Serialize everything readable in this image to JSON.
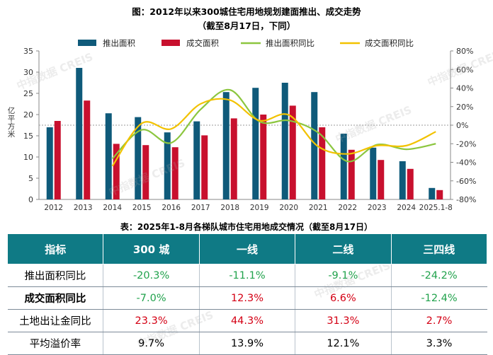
{
  "page": {
    "chart_title": "图：2012年以来300城住宅用地规划建面推出、成交走势",
    "chart_subtitle": "（截至8月17日，下同）",
    "table_title": "表：2025年1-8月各梯队城市住宅用地成交情况（截至8月17日）",
    "watermark": "中指数据 CREIS"
  },
  "chart_data": {
    "type": "bar",
    "categories": [
      "2012",
      "2013",
      "2014",
      "2015",
      "2016",
      "2017",
      "2018",
      "2019",
      "2020",
      "2021",
      "2022",
      "2023",
      "2024",
      "2025.1-8"
    ],
    "ylabel": "亿平方米",
    "ylim": [
      0,
      35
    ],
    "yticks": [
      0,
      5,
      10,
      15,
      20,
      25,
      30,
      35
    ],
    "y2lim": [
      -80,
      80
    ],
    "y2ticks": [
      "-80%",
      "-60%",
      "-40%",
      "-20%",
      "0%",
      "20%",
      "40%",
      "60%",
      "80%"
    ],
    "grid": false,
    "legend_position": "top",
    "series": [
      {
        "name": "推出面积",
        "kind": "bar",
        "axis": "left",
        "color": "#0f5a7a",
        "values": [
          17.0,
          31.0,
          20.3,
          19.4,
          15.8,
          18.4,
          25.3,
          26.3,
          27.5,
          25.3,
          15.5,
          12.2,
          9.0,
          2.7
        ]
      },
      {
        "name": "成交面积",
        "kind": "bar",
        "axis": "left",
        "color": "#c8102e",
        "values": [
          18.5,
          23.3,
          13.1,
          12.8,
          12.3,
          15.1,
          19.1,
          20.0,
          22.1,
          17.0,
          11.7,
          9.3,
          7.2,
          2.2
        ]
      },
      {
        "name": "推出面积同比",
        "kind": "line",
        "axis": "right",
        "color": "#8cc63f",
        "values": [
          null,
          null,
          -36,
          -5,
          -19,
          17,
          38,
          4,
          5,
          -8,
          -39,
          -21,
          -26,
          -20
        ]
      },
      {
        "name": "成交面积同比",
        "kind": "line",
        "axis": "right",
        "color": "#f2c200",
        "values": [
          null,
          null,
          -44,
          2,
          -4,
          23,
          27,
          5,
          11,
          -23,
          -31,
          -22,
          -22,
          -7
        ]
      }
    ]
  },
  "table": {
    "headers": [
      "指标",
      "300 城",
      "一线",
      "二线",
      "三四线"
    ],
    "rows": [
      {
        "label": "推出面积同比",
        "bold": false,
        "values": [
          "-20.3%",
          "-11.1%",
          "-9.1%",
          "-24.2%"
        ],
        "colors": [
          "green",
          "green",
          "green",
          "green"
        ]
      },
      {
        "label": "成交面积同比",
        "bold": true,
        "values": [
          "-7.0%",
          "12.3%",
          "6.6%",
          "-12.4%"
        ],
        "colors": [
          "green",
          "red",
          "red",
          "green"
        ]
      },
      {
        "label": "土地出让金同比",
        "bold": false,
        "values": [
          "23.3%",
          "44.3%",
          "31.3%",
          "2.7%"
        ],
        "colors": [
          "red",
          "red",
          "red",
          "red"
        ]
      },
      {
        "label": "平均溢价率",
        "bold": false,
        "values": [
          "9.7%",
          "13.9%",
          "12.1%",
          "3.3%"
        ],
        "colors": [
          "black",
          "black",
          "black",
          "black"
        ]
      }
    ]
  }
}
